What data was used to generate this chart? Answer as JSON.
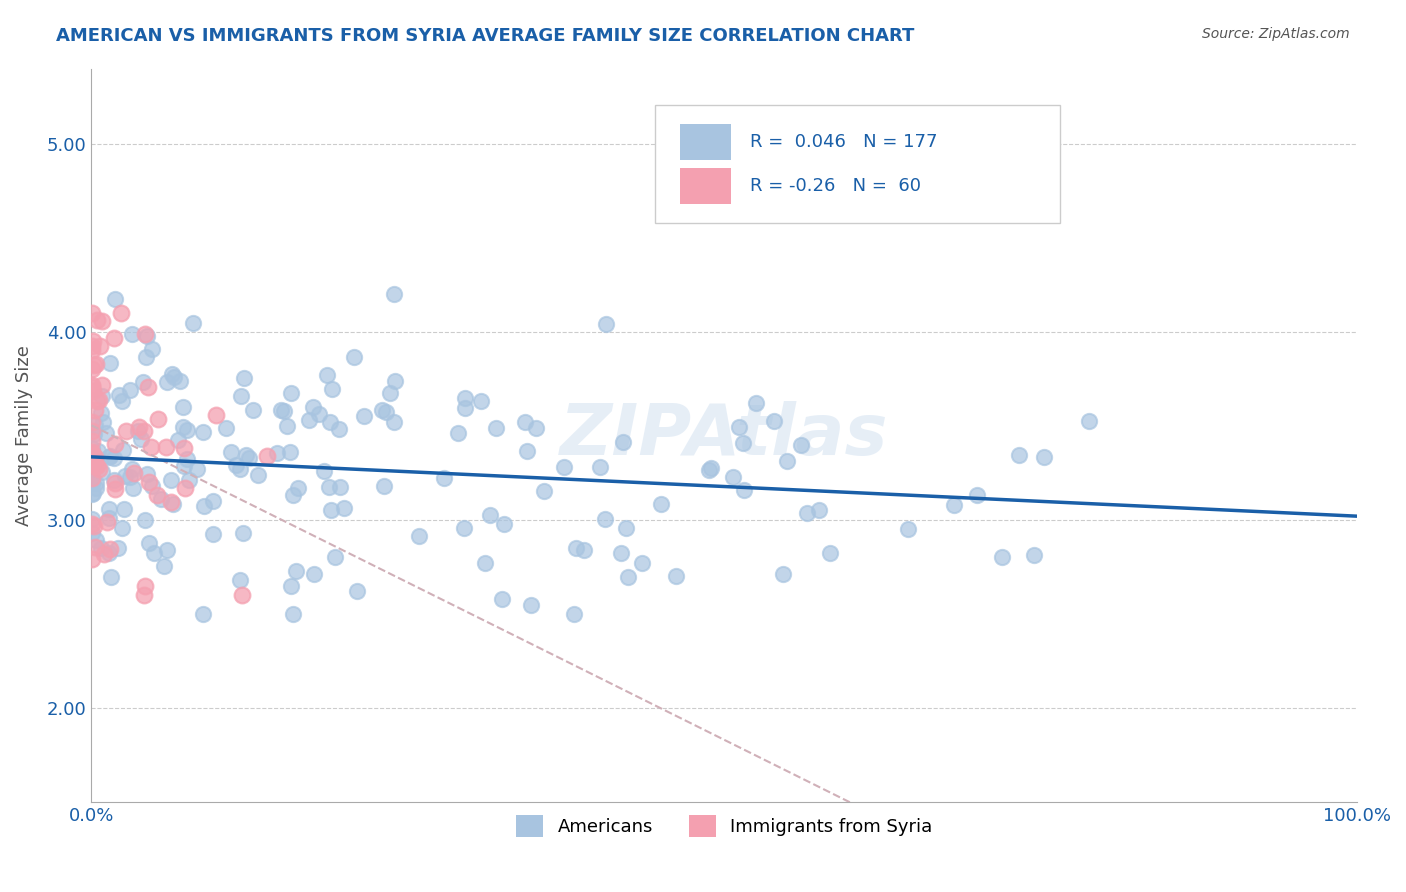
{
  "title": "AMERICAN VS IMMIGRANTS FROM SYRIA AVERAGE FAMILY SIZE CORRELATION CHART",
  "source": "Source: ZipAtlas.com",
  "xlabel": "",
  "ylabel": "Average Family Size",
  "xlim": [
    0.0,
    1.0
  ],
  "ylim": [
    1.5,
    5.4
  ],
  "yticks": [
    2.0,
    3.0,
    4.0,
    5.0
  ],
  "xticks": [
    0.0,
    1.0
  ],
  "xticklabels": [
    "0.0%",
    "100.0%"
  ],
  "r_american": 0.046,
  "n_american": 177,
  "r_syria": -0.26,
  "n_syria": 60,
  "american_color": "#a8c4e0",
  "syria_color": "#f4a0b0",
  "trend_american_color": "#1a5fa8",
  "trend_syria_color": "#e8a0b0",
  "watermark": "ZIPAtlas",
  "legend_box_color": "#f0f0f0",
  "title_color": "#1a5fa8",
  "axis_label_color": "#555555",
  "tick_color": "#1a5fa8",
  "grid_color": "#cccccc",
  "source_color": "#555555"
}
